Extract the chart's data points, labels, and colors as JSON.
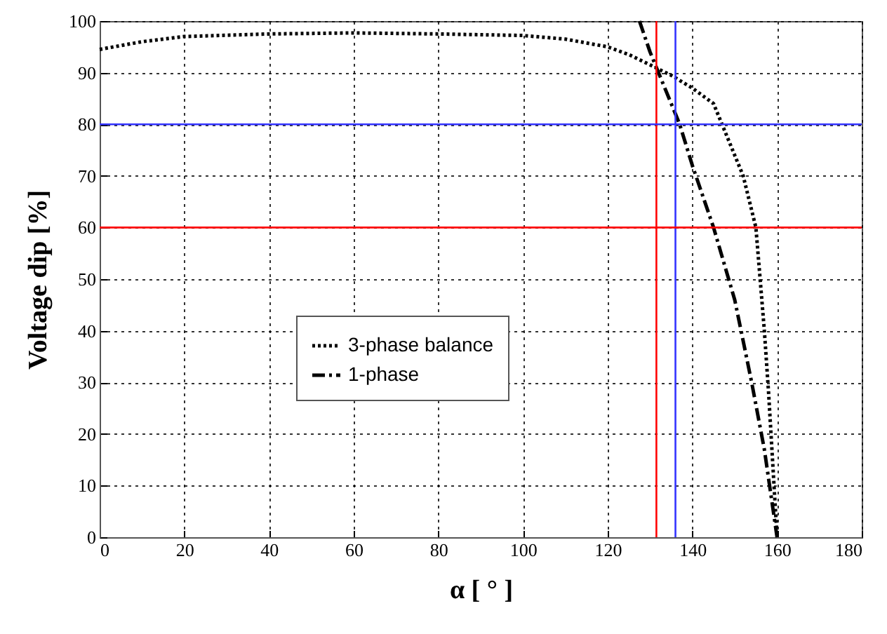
{
  "chart_data": {
    "type": "line",
    "xlabel": "α [ ° ]",
    "ylabel": "Voltage dip [%]",
    "xlim": [
      0,
      180
    ],
    "xticks": [
      0,
      20,
      40,
      60,
      80,
      100,
      120,
      140,
      160,
      180
    ],
    "ylim": [
      0,
      100
    ],
    "yticks": [
      0,
      10,
      20,
      30,
      40,
      50,
      60,
      70,
      80,
      90,
      100
    ],
    "grid": true,
    "legend": "bottom left",
    "series": [
      {
        "name": "3-phase balance",
        "color": "#000000",
        "line_style": "dotted",
        "x": [
          0,
          10,
          20,
          40,
          60,
          80,
          100,
          110,
          120,
          125,
          130,
          135,
          140,
          145,
          147,
          150,
          152,
          155,
          156,
          157,
          158,
          159,
          160
        ],
        "values": [
          94.5,
          96,
          97,
          97.5,
          97.7,
          97.5,
          97.2,
          96.5,
          95,
          93.5,
          91.5,
          89.5,
          87,
          84,
          80,
          74,
          70,
          60,
          50,
          40,
          28,
          14,
          0
        ]
      },
      {
        "name": "1-phase",
        "color": "#000000",
        "line_style": "dashed",
        "x": [
          127.5,
          130,
          132,
          135,
          137,
          140,
          145,
          150,
          154,
          157,
          160
        ],
        "values": [
          100,
          94,
          90,
          84,
          80,
          72,
          60,
          46,
          30,
          17,
          0
        ]
      }
    ],
    "ref_lines": [
      {
        "axis": "x",
        "value": 131.5,
        "color": "#ff0000"
      },
      {
        "axis": "x",
        "value": 136,
        "color": "#3333ff"
      },
      {
        "axis": "y",
        "value": 80,
        "color": "#3333ff"
      },
      {
        "axis": "y",
        "value": 60,
        "color": "#ff0000"
      }
    ]
  }
}
